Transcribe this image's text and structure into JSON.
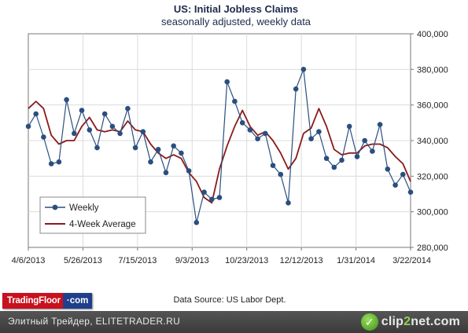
{
  "chart_data": {
    "type": "line",
    "title": "US: Initial Jobless Claims",
    "subtitle": "seasonally adjusted, weekly data",
    "xlabel": "",
    "ylabel": "",
    "x_ticks": [
      "4/6/2013",
      "5/26/2013",
      "7/15/2013",
      "9/3/2013",
      "10/23/2013",
      "12/12/2013",
      "1/31/2014",
      "3/22/2014"
    ],
    "y_ticks": [
      "280,000",
      "300,000",
      "320,000",
      "340,000",
      "360,000",
      "380,000",
      "400,000"
    ],
    "ylim": [
      280000,
      400000
    ],
    "grid": "horizontal and vertical",
    "legend_position": "bottom-left",
    "series": [
      {
        "name": "Weekly",
        "color": "#2a4f7f",
        "marker": "circle",
        "values": [
          348000,
          355000,
          342000,
          327000,
          328000,
          363000,
          344000,
          357000,
          346000,
          336000,
          355000,
          348000,
          344000,
          358000,
          336000,
          345000,
          328000,
          335000,
          322000,
          337000,
          333000,
          323000,
          294000,
          311000,
          307000,
          308000,
          373000,
          362000,
          350000,
          346000,
          341000,
          344000,
          326000,
          321000,
          305000,
          369000,
          380000,
          341000,
          345000,
          330000,
          325000,
          329000,
          348000,
          331000,
          340000,
          334000,
          349000,
          324000,
          315000,
          321000,
          311000
        ]
      },
      {
        "name": "4-Week Average",
        "color": "#8b1a1a",
        "values": [
          358000,
          362000,
          358000,
          343000,
          338000,
          340000,
          340000,
          348000,
          353000,
          346000,
          345000,
          346000,
          345000,
          351000,
          346000,
          345000,
          338000,
          333000,
          330000,
          332000,
          330000,
          322000,
          317000,
          308000,
          305000,
          324000,
          337000,
          348000,
          357000,
          348000,
          343000,
          345000,
          340000,
          333000,
          324000,
          330000,
          344000,
          347000,
          358000,
          348000,
          335000,
          332000,
          333000,
          333000,
          337000,
          338000,
          338000,
          336000,
          331000,
          327000,
          317000
        ]
      }
    ],
    "annotations": [
      "Data Source: US Labor Dept."
    ]
  },
  "branding": {
    "logo_part1": "TradingFloor",
    "logo_part2": "com",
    "logo_separator": "·"
  },
  "footer": {
    "watermark_text": "Элитный Трейдер, ELITETRADER.RU",
    "clip2net_prefix": "clip",
    "clip2net_accent": "2",
    "clip2net_suffix": "net.com",
    "clip2net_icon_glyph": "✓"
  }
}
